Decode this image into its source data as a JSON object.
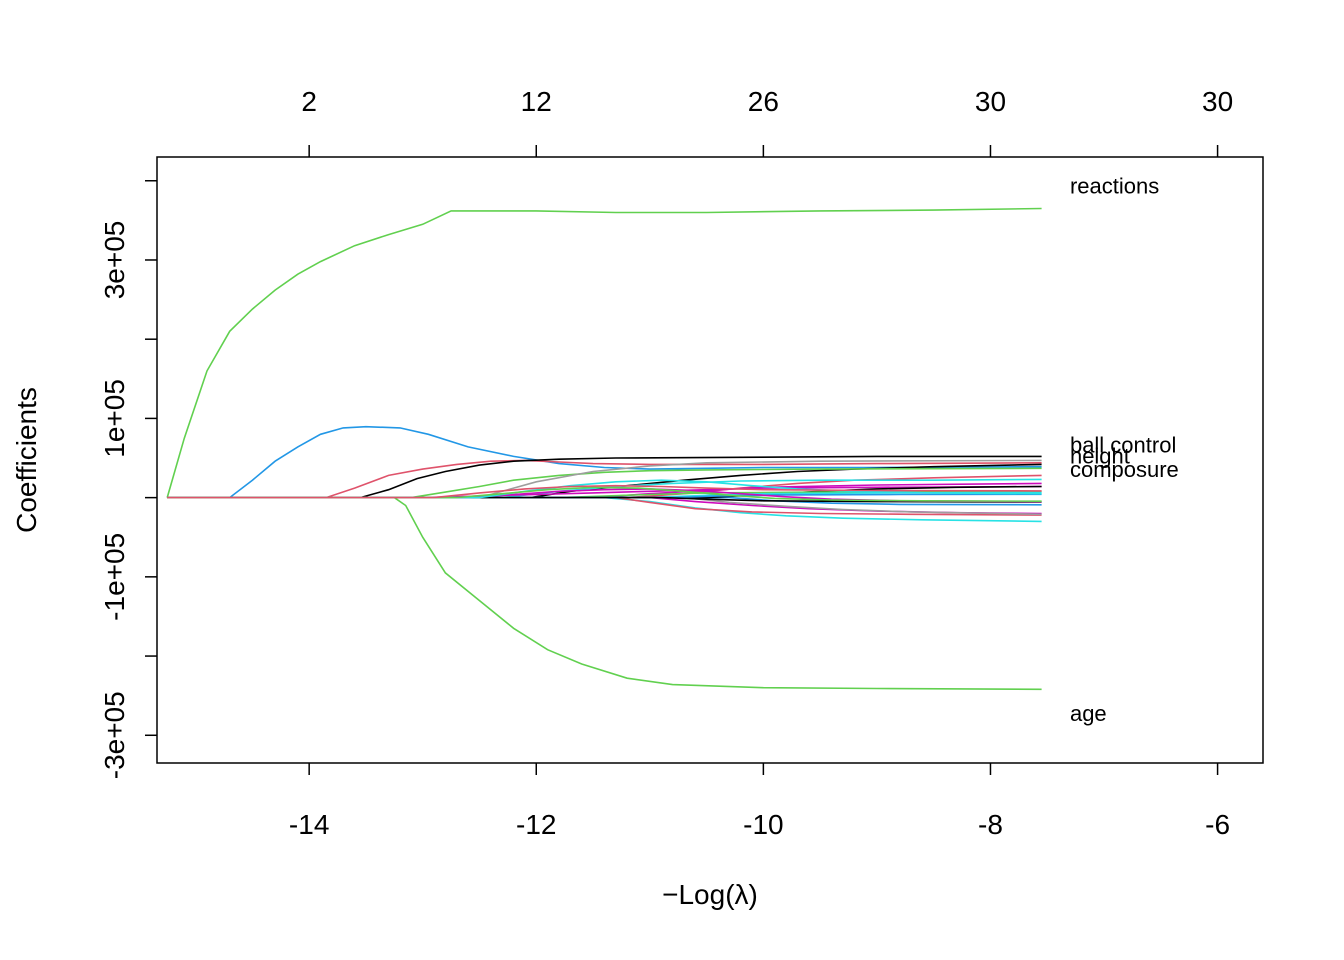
{
  "chart_data": {
    "type": "line",
    "title": "",
    "xlabel_prefix": "−",
    "xlabel_main": "Log(λ)",
    "ylabel": "Coefficients",
    "xlim": [
      -15.34,
      -5.6
    ],
    "ylim": [
      -335000,
      430000
    ],
    "x_ticks": [
      -14,
      -12,
      -10,
      -8,
      -6
    ],
    "y_ticks": [
      -300000,
      -200000,
      -100000,
      0,
      100000,
      200000,
      300000,
      400000
    ],
    "y_tick_labels": [
      {
        "value": -300000,
        "label": "-3e+05"
      },
      {
        "value": -100000,
        "label": "-1e+05"
      },
      {
        "value": 100000,
        "label": "1e+05"
      },
      {
        "value": 300000,
        "label": "3e+05"
      }
    ],
    "top_axis": [
      {
        "x": -14,
        "label": "2"
      },
      {
        "x": -12,
        "label": "12"
      },
      {
        "x": -10,
        "label": "26"
      },
      {
        "x": -8,
        "label": "30"
      },
      {
        "x": -6,
        "label": "30"
      }
    ],
    "label_x": -7.3,
    "series": [
      {
        "name": "reactions",
        "label": "reactions",
        "label_y": 394000,
        "color": "#61D04F",
        "points": [
          [
            -15.25,
            0
          ],
          [
            -15.1,
            75000
          ],
          [
            -14.9,
            160000
          ],
          [
            -14.7,
            210000
          ],
          [
            -14.5,
            238000
          ],
          [
            -14.3,
            262000
          ],
          [
            -14.1,
            282000
          ],
          [
            -13.9,
            298000
          ],
          [
            -13.6,
            318000
          ],
          [
            -13.3,
            332000
          ],
          [
            -13.0,
            345000
          ],
          [
            -12.75,
            362000
          ],
          [
            -12.0,
            362000
          ],
          [
            -11.3,
            360000
          ],
          [
            -10.5,
            360000
          ],
          [
            -9.5,
            362000
          ],
          [
            -8.5,
            363000
          ],
          [
            -7.55,
            365000
          ]
        ]
      },
      {
        "name": "age",
        "label": "age",
        "label_y": -272000,
        "color": "#61D04F",
        "points": [
          [
            -15.25,
            0
          ],
          [
            -13.25,
            0
          ],
          [
            -13.15,
            -10000
          ],
          [
            -13.0,
            -50000
          ],
          [
            -12.8,
            -95000
          ],
          [
            -12.5,
            -130000
          ],
          [
            -12.2,
            -165000
          ],
          [
            -11.9,
            -192000
          ],
          [
            -11.6,
            -210000
          ],
          [
            -11.2,
            -228000
          ],
          [
            -10.8,
            -236000
          ],
          [
            -10.0,
            -240000
          ],
          [
            -9.0,
            -241000
          ],
          [
            -7.55,
            -242000
          ]
        ]
      },
      {
        "name": "s_blue",
        "color": "#2297E6",
        "points": [
          [
            -15.25,
            0
          ],
          [
            -14.7,
            0
          ],
          [
            -14.5,
            22000
          ],
          [
            -14.3,
            46000
          ],
          [
            -14.1,
            64000
          ],
          [
            -13.9,
            80000
          ],
          [
            -13.7,
            88000
          ],
          [
            -13.5,
            89500
          ],
          [
            -13.2,
            88000
          ],
          [
            -12.95,
            80000
          ],
          [
            -12.6,
            64000
          ],
          [
            -12.2,
            52000
          ],
          [
            -11.8,
            43000
          ],
          [
            -11.4,
            38000
          ],
          [
            -11.0,
            36000
          ],
          [
            -10.5,
            37000
          ],
          [
            -10.0,
            38000
          ],
          [
            -9.0,
            38000
          ],
          [
            -7.55,
            39000
          ]
        ]
      },
      {
        "name": "s_red",
        "color": "#DF536B",
        "points": [
          [
            -15.25,
            0
          ],
          [
            -13.85,
            0
          ],
          [
            -13.6,
            12000
          ],
          [
            -13.3,
            28000
          ],
          [
            -13.0,
            36000
          ],
          [
            -12.7,
            42000
          ],
          [
            -12.4,
            46000
          ],
          [
            -12.1,
            47000
          ],
          [
            -11.8,
            45000
          ],
          [
            -11.5,
            43000
          ],
          [
            -11.0,
            42000
          ],
          [
            -10.0,
            42000
          ],
          [
            -9.0,
            43000
          ],
          [
            -7.55,
            44000
          ]
        ]
      },
      {
        "name": "s_black",
        "color": "#000000",
        "points": [
          [
            -15.25,
            0
          ],
          [
            -13.55,
            0
          ],
          [
            -13.3,
            10000
          ],
          [
            -13.05,
            24000
          ],
          [
            -12.8,
            33000
          ],
          [
            -12.5,
            41000
          ],
          [
            -12.2,
            46000
          ],
          [
            -11.8,
            48500
          ],
          [
            -11.3,
            50000
          ],
          [
            -10.0,
            51000
          ],
          [
            -9.0,
            52000
          ],
          [
            -7.55,
            52000
          ]
        ]
      },
      {
        "name": "ball_control",
        "label": "ball control",
        "label_y": 67000,
        "color": "#000000",
        "points": [
          [
            -15.25,
            0
          ],
          [
            -12.05,
            0
          ],
          [
            -11.7,
            8000
          ],
          [
            -11.2,
            15000
          ],
          [
            -10.7,
            22000
          ],
          [
            -10.2,
            28000
          ],
          [
            -9.7,
            33000
          ],
          [
            -9.2,
            36000
          ],
          [
            -8.5,
            39000
          ],
          [
            -7.55,
            42000
          ]
        ]
      },
      {
        "name": "height",
        "label": "height",
        "label_y": 53000,
        "color": "#DF536B",
        "points": [
          [
            -15.25,
            0
          ],
          [
            -11.2,
            0
          ],
          [
            -10.7,
            5000
          ],
          [
            -10.2,
            12000
          ],
          [
            -9.7,
            18000
          ],
          [
            -9.2,
            22000
          ],
          [
            -8.5,
            25000
          ],
          [
            -7.55,
            28000
          ]
        ]
      },
      {
        "name": "composure",
        "label": "composure",
        "label_y": 36000,
        "color": "#28E2E5",
        "points": [
          [
            -15.25,
            0
          ],
          [
            -12.3,
            0
          ],
          [
            -11.8,
            8000
          ],
          [
            -11.3,
            14000
          ],
          [
            -10.8,
            18000
          ],
          [
            -10.2,
            21000
          ],
          [
            -9.5,
            22000
          ],
          [
            -8.5,
            22000
          ],
          [
            -7.55,
            23000
          ]
        ]
      },
      {
        "name": "s_green_mid",
        "color": "#61D04F",
        "points": [
          [
            -15.25,
            0
          ],
          [
            -13.1,
            0
          ],
          [
            -12.8,
            7000
          ],
          [
            -12.5,
            14000
          ],
          [
            -12.2,
            22000
          ],
          [
            -11.8,
            28000
          ],
          [
            -11.4,
            32000
          ],
          [
            -11.0,
            34000
          ],
          [
            -10.5,
            35000
          ],
          [
            -9.5,
            36000
          ],
          [
            -7.55,
            37000
          ]
        ]
      },
      {
        "name": "s_magenta1",
        "color": "#CD0BBC",
        "points": [
          [
            -15.25,
            0
          ],
          [
            -13.0,
            0
          ],
          [
            -12.5,
            2000
          ],
          [
            -12.0,
            4000
          ],
          [
            -11.5,
            6000
          ],
          [
            -11.0,
            8000
          ],
          [
            -10.5,
            10000
          ],
          [
            -10.0,
            12000
          ],
          [
            -9.0,
            13000
          ],
          [
            -7.55,
            14000
          ]
        ]
      },
      {
        "name": "s_cyan_low",
        "color": "#28E2E5",
        "points": [
          [
            -15.25,
            0
          ],
          [
            -11.4,
            0
          ],
          [
            -11.0,
            -5000
          ],
          [
            -10.6,
            -13000
          ],
          [
            -10.2,
            -19000
          ],
          [
            -9.8,
            -23000
          ],
          [
            -9.3,
            -26000
          ],
          [
            -8.6,
            -28000
          ],
          [
            -7.55,
            -30000
          ]
        ]
      },
      {
        "name": "s_red_low",
        "color": "#DF536B",
        "points": [
          [
            -15.25,
            0
          ],
          [
            -11.3,
            0
          ],
          [
            -11.0,
            -6000
          ],
          [
            -10.6,
            -14000
          ],
          [
            -10.1,
            -18000
          ],
          [
            -9.5,
            -20000
          ],
          [
            -8.7,
            -21000
          ],
          [
            -7.55,
            -22000
          ]
        ]
      },
      {
        "name": "s_magenta_low",
        "color": "#CD0BBC",
        "points": [
          [
            -15.25,
            0
          ],
          [
            -11.0,
            0
          ],
          [
            -10.6,
            -5000
          ],
          [
            -10.1,
            -10000
          ],
          [
            -9.6,
            -14000
          ],
          [
            -9.0,
            -17000
          ],
          [
            -8.3,
            -19000
          ],
          [
            -7.55,
            -20000
          ]
        ]
      },
      {
        "name": "s_gray_low",
        "color": "#9E9E9E",
        "points": [
          [
            -15.25,
            0
          ],
          [
            -10.7,
            0
          ],
          [
            -10.3,
            -6000
          ],
          [
            -9.8,
            -11000
          ],
          [
            -9.3,
            -15000
          ],
          [
            -8.7,
            -18000
          ],
          [
            -7.55,
            -21000
          ]
        ]
      },
      {
        "name": "s_blue_low",
        "color": "#2297E6",
        "points": [
          [
            -15.25,
            0
          ],
          [
            -10.3,
            0
          ],
          [
            -9.9,
            -4000
          ],
          [
            -9.4,
            -7000
          ],
          [
            -8.8,
            -8500
          ],
          [
            -7.55,
            -9000
          ]
        ]
      },
      {
        "name": "s_black_mid",
        "color": "#000000",
        "points": [
          [
            -15.25,
            0
          ],
          [
            -10.5,
            0
          ],
          [
            -10.0,
            4000
          ],
          [
            -9.5,
            8000
          ],
          [
            -9.0,
            11000
          ],
          [
            -8.3,
            13000
          ],
          [
            -7.55,
            14000
          ]
        ]
      },
      {
        "name": "s_magenta_mid",
        "color": "#CD0BBC",
        "points": [
          [
            -15.25,
            0
          ],
          [
            -11.5,
            0
          ],
          [
            -11.0,
            5000
          ],
          [
            -10.5,
            9000
          ],
          [
            -10.0,
            13000
          ],
          [
            -9.0,
            16000
          ],
          [
            -7.55,
            18000
          ]
        ]
      },
      {
        "name": "s_gray_top",
        "color": "#9E9E9E",
        "points": [
          [
            -15.25,
            0
          ],
          [
            -12.5,
            0
          ],
          [
            -12.0,
            20000
          ],
          [
            -11.5,
            33000
          ],
          [
            -11.0,
            40000
          ],
          [
            -10.5,
            44000
          ],
          [
            -9.5,
            46000
          ],
          [
            -7.55,
            47000
          ]
        ]
      },
      {
        "name": "s_green_low",
        "color": "#61D04F",
        "points": [
          [
            -15.25,
            0
          ],
          [
            -11.8,
            0
          ],
          [
            -11.4,
            2000
          ],
          [
            -11.0,
            4000
          ],
          [
            -10.5,
            6000
          ],
          [
            -9.5,
            7000
          ],
          [
            -7.55,
            8000
          ]
        ]
      },
      {
        "name": "s_cyan_mid",
        "color": "#28E2E5",
        "points": [
          [
            -15.25,
            0
          ],
          [
            -11.0,
            0
          ],
          [
            -10.5,
            3000
          ],
          [
            -10.0,
            5000
          ],
          [
            -9.0,
            6000
          ],
          [
            -7.55,
            6500
          ]
        ]
      },
      {
        "name": "s_blue_mid",
        "color": "#2297E6",
        "points": [
          [
            -15.25,
            0
          ],
          [
            -10.8,
            0
          ],
          [
            -10.4,
            2000
          ],
          [
            -9.8,
            3500
          ],
          [
            -8.8,
            4000
          ],
          [
            -7.55,
            4200
          ]
        ]
      },
      {
        "name": "s_black_low",
        "color": "#000000",
        "points": [
          [
            -15.25,
            0
          ],
          [
            -10.9,
            0
          ],
          [
            -10.5,
            -2000
          ],
          [
            -10.0,
            -4000
          ],
          [
            -9.0,
            -5000
          ],
          [
            -7.55,
            -5500
          ]
        ]
      },
      {
        "name": "s_magenta_cross",
        "color": "#CD0BBC",
        "points": [
          [
            -15.25,
            0
          ],
          [
            -12.6,
            0
          ],
          [
            -12.2,
            4000
          ],
          [
            -11.8,
            8000
          ],
          [
            -11.4,
            10000
          ],
          [
            -11.0,
            11000
          ],
          [
            -10.6,
            9000
          ],
          [
            -10.2,
            5000
          ],
          [
            -9.8,
            1000
          ],
          [
            -9.4,
            -2000
          ],
          [
            -8.8,
            -4000
          ],
          [
            -7.55,
            -5000
          ]
        ]
      },
      {
        "name": "s_cyan_cross",
        "color": "#28E2E5",
        "points": [
          [
            -15.25,
            0
          ],
          [
            -12.5,
            0
          ],
          [
            -12.1,
            8000
          ],
          [
            -11.7,
            15000
          ],
          [
            -11.3,
            20000
          ],
          [
            -10.9,
            22000
          ],
          [
            -10.5,
            20000
          ],
          [
            -10.1,
            15000
          ],
          [
            -9.7,
            11000
          ],
          [
            -9.2,
            8000
          ],
          [
            -8.5,
            6000
          ],
          [
            -7.55,
            5000
          ]
        ]
      },
      {
        "name": "s_green_cross",
        "color": "#61D04F",
        "points": [
          [
            -15.25,
            0
          ],
          [
            -12.7,
            0
          ],
          [
            -12.3,
            5000
          ],
          [
            -11.9,
            10000
          ],
          [
            -11.5,
            13000
          ],
          [
            -11.1,
            12000
          ],
          [
            -10.7,
            8000
          ],
          [
            -10.3,
            3000
          ],
          [
            -9.9,
            -1000
          ],
          [
            -9.4,
            -3000
          ],
          [
            -8.6,
            -4000
          ],
          [
            -7.55,
            -4500
          ]
        ]
      },
      {
        "name": "s_red_cross",
        "color": "#DF536B",
        "points": [
          [
            -15.25,
            0
          ],
          [
            -12.9,
            0
          ],
          [
            -12.5,
            6000
          ],
          [
            -12.1,
            11000
          ],
          [
            -11.7,
            14000
          ],
          [
            -11.3,
            15000
          ],
          [
            -10.9,
            14000
          ],
          [
            -10.5,
            12000
          ],
          [
            -10.0,
            10000
          ],
          [
            -9.0,
            9000
          ],
          [
            -7.55,
            8500
          ]
        ]
      }
    ]
  }
}
